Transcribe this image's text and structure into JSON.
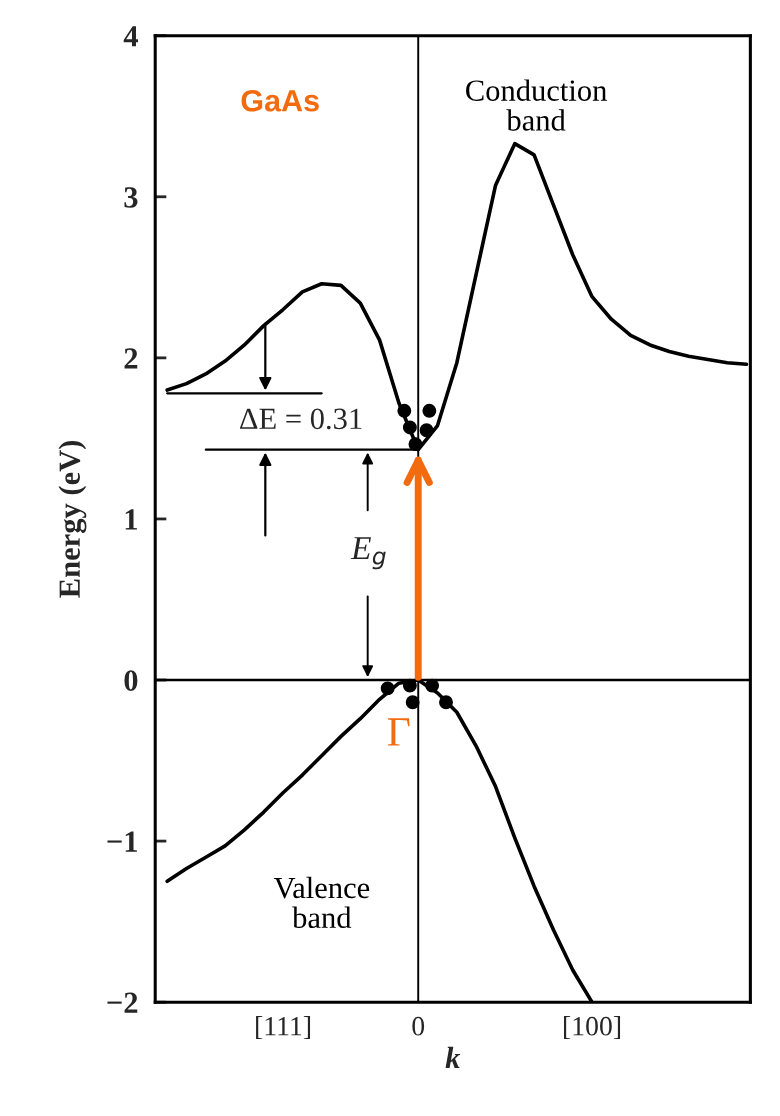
{
  "chart_data": {
    "type": "line",
    "xlabel": "k",
    "ylabel": "Energy (eV)",
    "categories": [
      null,
      null,
      null,
      null,
      null,
      null,
      "[111]",
      null,
      null,
      null,
      null,
      null,
      null,
      "0",
      null,
      null,
      null,
      null,
      null,
      null,
      null,
      null,
      "[100]",
      null,
      null,
      null,
      null,
      null,
      null,
      null,
      null
    ],
    "ylim": [
      -2,
      4
    ],
    "yticks": [
      -2,
      -1,
      0,
      1,
      2,
      3,
      4
    ],
    "series": [
      {
        "color": "#000000",
        "values": [
          1.8,
          1.84,
          1.9,
          1.98,
          2.08,
          2.2,
          2.3,
          2.41,
          2.46,
          2.45,
          2.34,
          2.11,
          1.72,
          1.43,
          1.58,
          1.97,
          2.52,
          3.07,
          3.33,
          3.26,
          2.95,
          2.64,
          2.38,
          2.24,
          2.14,
          2.08,
          2.04,
          2.01,
          1.99,
          1.97,
          1.96
        ]
      },
      {
        "color": "#000000",
        "values": [
          -1.25,
          -1.17,
          -1.1,
          -1.03,
          -0.93,
          -0.82,
          -0.7,
          -0.59,
          -0.47,
          -0.35,
          -0.24,
          -0.12,
          -0.02,
          0.0,
          -0.08,
          -0.2,
          -0.41,
          -0.66,
          -0.98,
          -1.28,
          -1.55,
          -1.8,
          -2.0,
          null,
          null,
          null,
          null,
          null,
          null,
          null,
          null
        ]
      },
      {
        "color": "#000000",
        "values": [
          1.78,
          1.78,
          1.78,
          1.78,
          1.78,
          1.78,
          1.78,
          1.78,
          1.78,
          null,
          null,
          null,
          null,
          null,
          null,
          null,
          null,
          null,
          null,
          null,
          null,
          null,
          null,
          null,
          null,
          null,
          null,
          null,
          null,
          null,
          null
        ]
      },
      {
        "color": "#000000",
        "values": [
          null,
          null,
          1.43,
          1.43,
          1.43,
          1.43,
          1.43,
          1.43,
          1.43,
          1.43,
          1.43,
          1.43,
          1.43,
          1.43,
          null,
          null,
          null,
          null,
          null,
          null,
          null,
          null,
          null,
          null,
          null,
          null,
          null,
          null,
          null,
          null,
          null
        ]
      }
    ],
    "ref_lines": [
      {
        "axis": "y",
        "value": 0,
        "color": "#000000"
      },
      {
        "axis": "x",
        "value": "0",
        "color": "#000000"
      }
    ],
    "annotations": [
      "GaAs",
      "Conduction\nband",
      "Valence\nband",
      "ΔE = 0.31",
      "E$_{g}$",
      {
        "text": "Γ",
        "x": "0",
        "y": 0
      }
    ],
    "grid": false,
    "legend": false
  }
}
